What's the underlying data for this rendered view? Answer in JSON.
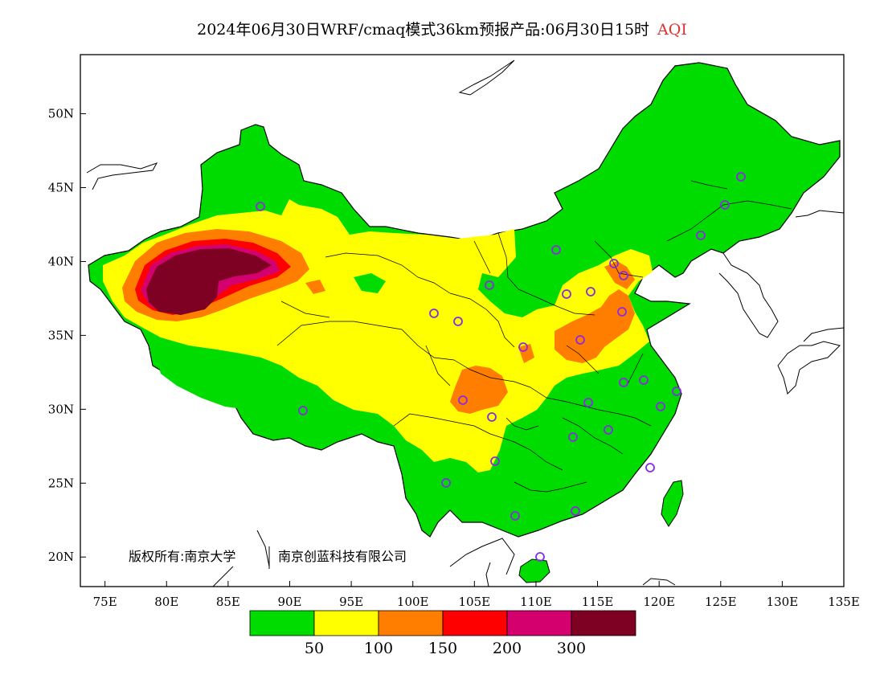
{
  "title": {
    "main": "2024年06月30日WRF/cmaq模式36km预报产品:06月30日15时",
    "variable": "AQI"
  },
  "map": {
    "lat_ticks": [
      "50N",
      "45N",
      "40N",
      "35N",
      "30N",
      "25N",
      "20N"
    ],
    "lon_ticks": [
      "75E",
      "80E",
      "85E",
      "90E",
      "95E",
      "100E",
      "105E",
      "110E",
      "115E",
      "120E",
      "125E",
      "130E",
      "135E"
    ],
    "lon_range": [
      73,
      135
    ],
    "lat_range": [
      18,
      54
    ],
    "copyright_left": "版权所有:南京大学",
    "copyright_right": "南京创蓝科技有限公司",
    "station_marker_color": "#8a2be2"
  },
  "legend": {
    "colors": [
      "#00dc00",
      "#ffff00",
      "#ff7e00",
      "#ff0000",
      "#d4006e",
      "#7e0023"
    ],
    "thresholds": [
      "50",
      "100",
      "150",
      "200",
      "300"
    ]
  }
}
